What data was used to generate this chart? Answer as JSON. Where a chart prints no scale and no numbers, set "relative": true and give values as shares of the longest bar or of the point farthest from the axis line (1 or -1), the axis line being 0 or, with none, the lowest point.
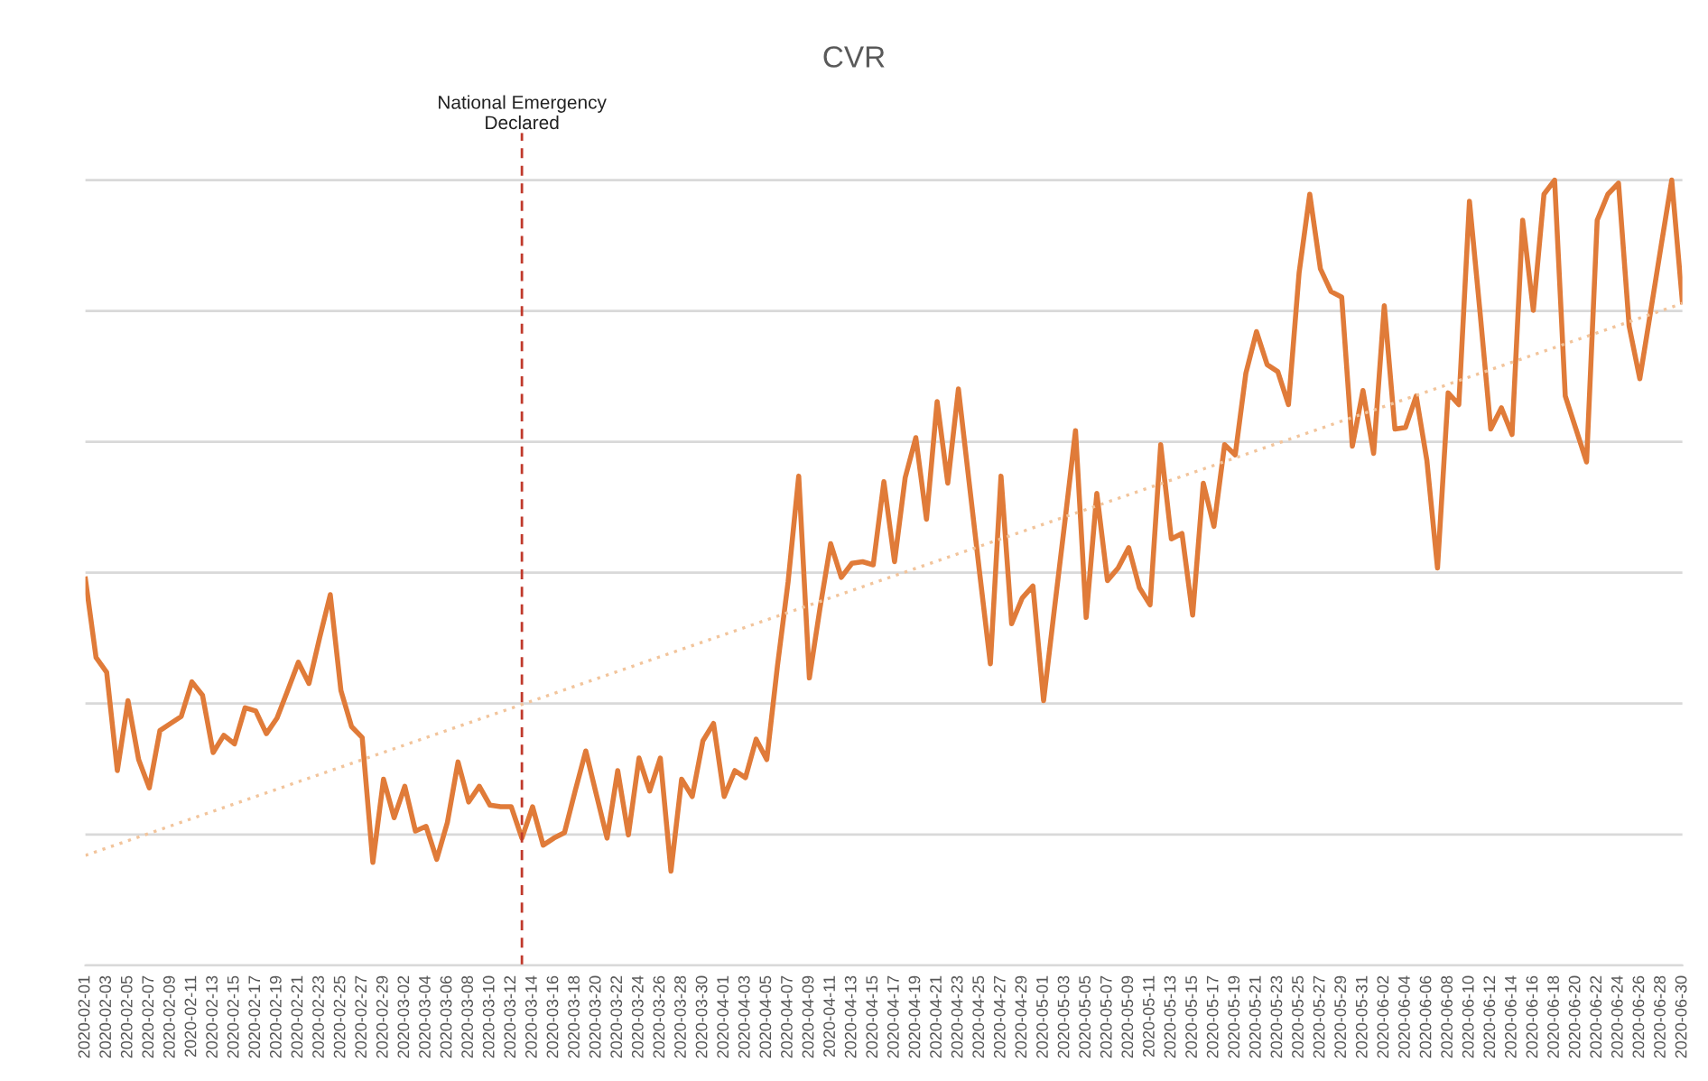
{
  "chart_data": {
    "type": "line",
    "title": "CVR",
    "relative": true,
    "grid": "y",
    "legend": false,
    "marker": "none",
    "line_style": "solid",
    "x": [
      "2020-02-01",
      "2020-02-02",
      "2020-02-03",
      "2020-02-04",
      "2020-02-05",
      "2020-02-06",
      "2020-02-07",
      "2020-02-08",
      "2020-02-09",
      "2020-02-10",
      "2020-02-11",
      "2020-02-12",
      "2020-02-13",
      "2020-02-14",
      "2020-02-15",
      "2020-02-16",
      "2020-02-17",
      "2020-02-18",
      "2020-02-19",
      "2020-02-20",
      "2020-02-21",
      "2020-02-22",
      "2020-02-23",
      "2020-02-24",
      "2020-02-25",
      "2020-02-26",
      "2020-02-27",
      "2020-02-28",
      "2020-02-29",
      "2020-03-01",
      "2020-03-02",
      "2020-03-03",
      "2020-03-04",
      "2020-03-05",
      "2020-03-06",
      "2020-03-07",
      "2020-03-08",
      "2020-03-09",
      "2020-03-10",
      "2020-03-11",
      "2020-03-12",
      "2020-03-13",
      "2020-03-14",
      "2020-03-15",
      "2020-03-16",
      "2020-03-17",
      "2020-03-18",
      "2020-03-19",
      "2020-03-20",
      "2020-03-21",
      "2020-03-22",
      "2020-03-23",
      "2020-03-24",
      "2020-03-25",
      "2020-03-26",
      "2020-03-27",
      "2020-03-28",
      "2020-03-29",
      "2020-03-30",
      "2020-03-31",
      "2020-04-01",
      "2020-04-02",
      "2020-04-03",
      "2020-04-04",
      "2020-04-05",
      "2020-04-06",
      "2020-04-07",
      "2020-04-08",
      "2020-04-09",
      "2020-04-10",
      "2020-04-11",
      "2020-04-12",
      "2020-04-13",
      "2020-04-14",
      "2020-04-15",
      "2020-04-16",
      "2020-04-17",
      "2020-04-18",
      "2020-04-19",
      "2020-04-20",
      "2020-04-21",
      "2020-04-22",
      "2020-04-23",
      "2020-04-24",
      "2020-04-25",
      "2020-04-26",
      "2020-04-27",
      "2020-04-28",
      "2020-04-29",
      "2020-04-30",
      "2020-05-01",
      "2020-05-02",
      "2020-05-03",
      "2020-05-04",
      "2020-05-05",
      "2020-05-06",
      "2020-05-07",
      "2020-05-08",
      "2020-05-09",
      "2020-05-10",
      "2020-05-11",
      "2020-05-12",
      "2020-05-13",
      "2020-05-14",
      "2020-05-15",
      "2020-05-16",
      "2020-05-17",
      "2020-05-18",
      "2020-05-19",
      "2020-05-20",
      "2020-05-21",
      "2020-05-22",
      "2020-05-23",
      "2020-05-24",
      "2020-05-25",
      "2020-05-26",
      "2020-05-27",
      "2020-05-28",
      "2020-05-29",
      "2020-05-30",
      "2020-05-31",
      "2020-06-01",
      "2020-06-02",
      "2020-06-03",
      "2020-06-04",
      "2020-06-05",
      "2020-06-06",
      "2020-06-07",
      "2020-06-08",
      "2020-06-09",
      "2020-06-10",
      "2020-06-11",
      "2020-06-12",
      "2020-06-13",
      "2020-06-14",
      "2020-06-15",
      "2020-06-16",
      "2020-06-17",
      "2020-06-18",
      "2020-06-19",
      "2020-06-20",
      "2020-06-21",
      "2020-06-22",
      "2020-06-23",
      "2020-06-24",
      "2020-06-25",
      "2020-06-26",
      "2020-06-27",
      "2020-06-28",
      "2020-06-29",
      "2020-06-30"
    ],
    "xlim": [
      "2020-02-01",
      "2020-06-30"
    ],
    "xticks": [
      "2020-02-01",
      "2020-02-03",
      "2020-02-05",
      "2020-02-07",
      "2020-02-09",
      "2020-02-11",
      "2020-02-13",
      "2020-02-15",
      "2020-02-17",
      "2020-02-19",
      "2020-02-21",
      "2020-02-23",
      "2020-02-25",
      "2020-02-27",
      "2020-02-29",
      "2020-03-02",
      "2020-03-04",
      "2020-03-06",
      "2020-03-08",
      "2020-03-10",
      "2020-03-12",
      "2020-03-14",
      "2020-03-16",
      "2020-03-18",
      "2020-03-20",
      "2020-03-22",
      "2020-03-24",
      "2020-03-26",
      "2020-03-28",
      "2020-03-30",
      "2020-04-01",
      "2020-04-03",
      "2020-04-05",
      "2020-04-07",
      "2020-04-09",
      "2020-04-11",
      "2020-04-13",
      "2020-04-15",
      "2020-04-17",
      "2020-04-19",
      "2020-04-21",
      "2020-04-23",
      "2020-04-25",
      "2020-04-27",
      "2020-04-29",
      "2020-05-01",
      "2020-05-03",
      "2020-05-05",
      "2020-05-07",
      "2020-05-09",
      "2020-05-11",
      "2020-05-13",
      "2020-05-15",
      "2020-05-17",
      "2020-05-19",
      "2020-05-21",
      "2020-05-23",
      "2020-05-25",
      "2020-05-27",
      "2020-05-29",
      "2020-05-31",
      "2020-06-02",
      "2020-06-04",
      "2020-06-06",
      "2020-06-08",
      "2020-06-10",
      "2020-06-12",
      "2020-06-14",
      "2020-06-16",
      "2020-06-18",
      "2020-06-20",
      "2020-06-22",
      "2020-06-24",
      "2020-06-26",
      "2020-06-28",
      "2020-06-30"
    ],
    "series": [
      {
        "color": "#e07b39",
        "values": [
          0.492,
          0.392,
          0.373,
          0.248,
          0.337,
          0.262,
          0.226,
          0.299,
          0.308,
          0.317,
          0.361,
          0.344,
          0.271,
          0.293,
          0.282,
          0.328,
          0.324,
          0.295,
          0.315,
          0.35,
          0.386,
          0.359,
          0.417,
          0.472,
          0.35,
          0.304,
          0.29,
          0.131,
          0.237,
          0.188,
          0.228,
          0.171,
          0.177,
          0.135,
          0.182,
          0.259,
          0.208,
          0.228,
          0.204,
          0.202,
          0.202,
          0.162,
          0.202,
          0.153,
          0.162,
          0.169,
          0.222,
          0.273,
          0.217,
          0.162,
          0.248,
          0.166,
          0.264,
          0.222,
          0.264,
          0.12,
          0.237,
          0.215,
          0.286,
          0.308,
          0.215,
          0.248,
          0.239,
          0.288,
          0.262,
          0.381,
          0.488,
          0.623,
          0.366,
          0.455,
          0.537,
          0.494,
          0.512,
          0.514,
          0.51,
          0.616,
          0.514,
          0.621,
          0.672,
          0.568,
          0.718,
          0.614,
          0.734,
          0.616,
          0.499,
          0.384,
          0.623,
          0.435,
          0.468,
          0.483,
          0.337,
          0.452,
          0.565,
          0.681,
          0.443,
          0.601,
          0.49,
          0.506,
          0.532,
          0.481,
          0.459,
          0.663,
          0.543,
          0.55,
          0.446,
          0.614,
          0.559,
          0.663,
          0.65,
          0.754,
          0.807,
          0.765,
          0.756,
          0.714,
          0.882,
          0.982,
          0.887,
          0.858,
          0.851,
          0.661,
          0.732,
          0.652,
          0.84,
          0.683,
          0.685,
          0.725,
          0.643,
          0.506,
          0.729,
          0.714,
          0.973,
          0.831,
          0.683,
          0.71,
          0.676,
          0.949,
          0.834,
          0.982,
          1.0,
          0.725,
          0.683,
          0.641,
          0.949,
          0.982,
          0.996,
          0.814,
          0.747,
          0.831,
          0.916,
          1.0,
          0.845
        ]
      },
      {
        "type": "line",
        "color": "#f2c49b",
        "line_style": "dotted",
        "x": [
          "2020-02-01",
          "2020-06-30"
        ],
        "values": [
          0.14,
          0.843
        ]
      }
    ],
    "ref_lines": [
      {
        "axis": "x",
        "value": "2020-03-13",
        "label": "National Emergency\nDeclared",
        "color": "#c0392b",
        "line_style": "dashed"
      }
    ]
  }
}
